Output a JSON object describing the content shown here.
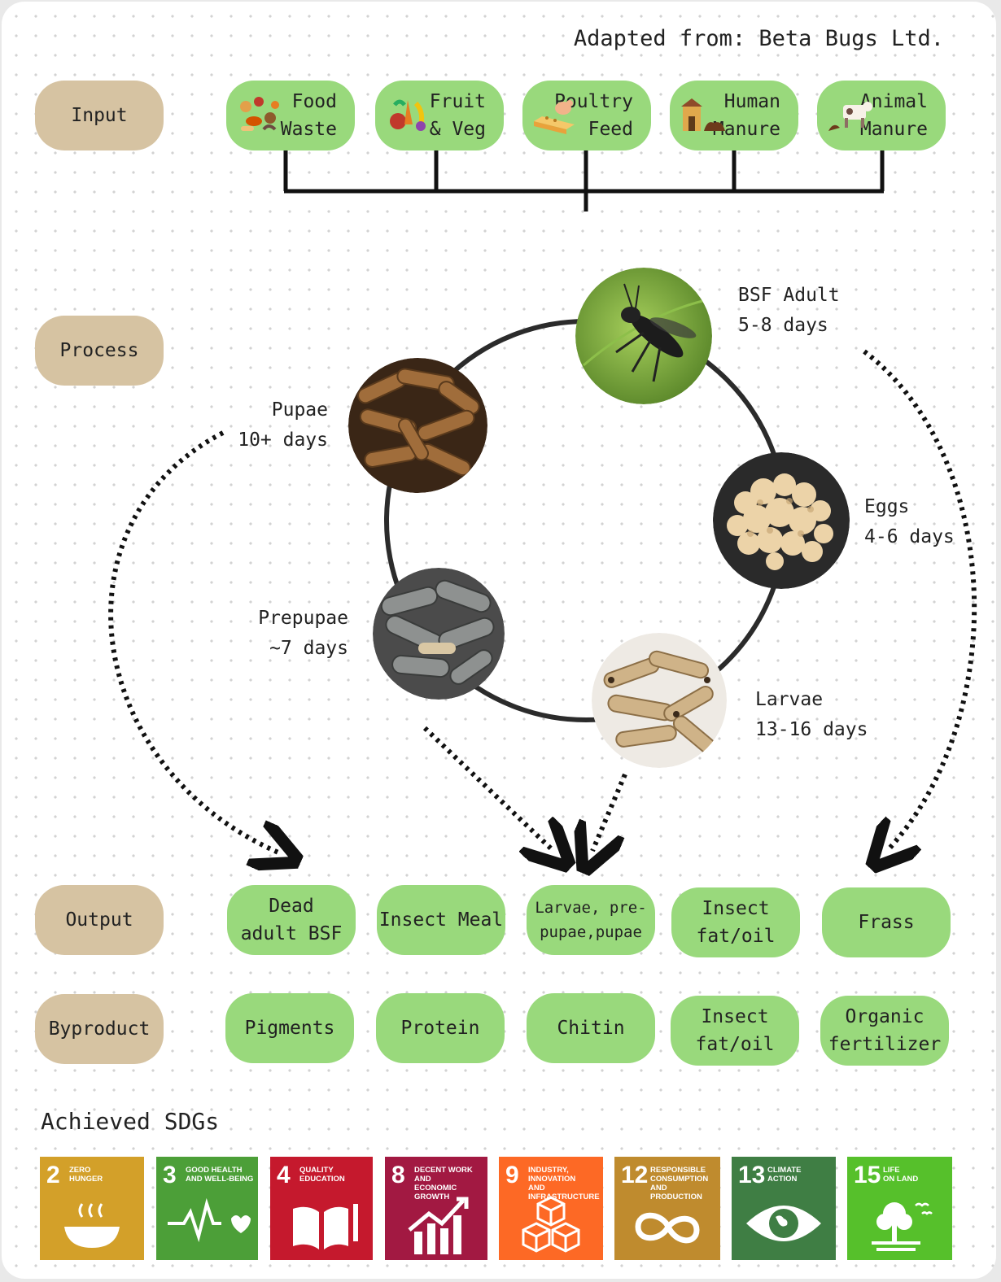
{
  "credit": "Adapted from: Beta Bugs Ltd.",
  "stages": {
    "input": "Input",
    "process": "Process",
    "output": "Output",
    "byproduct": "Byproduct"
  },
  "inputs": [
    {
      "label": "Food\nWaste",
      "icon": "food-waste-icon"
    },
    {
      "label": "Fruit\n& Veg",
      "icon": "fruit-veg-icon"
    },
    {
      "label": "Poultry\nFeed",
      "icon": "poultry-feed-icon"
    },
    {
      "label": "Human\nManure",
      "icon": "human-manure-icon"
    },
    {
      "label": "Animal\nManure",
      "icon": "animal-manure-icon"
    }
  ],
  "lifecycle": [
    {
      "name": "BSF Adult",
      "duration": "5-8 days"
    },
    {
      "name": "Eggs",
      "duration": "4-6 days"
    },
    {
      "name": "Larvae",
      "duration": "13-16 days"
    },
    {
      "name": "Prepupae",
      "duration": "~7 days"
    },
    {
      "name": "Pupae",
      "duration": "10+ days"
    }
  ],
  "outputs": [
    "Dead\nadult BSF",
    "Insect Meal",
    "Larvae, pre-\npupae,pupae",
    "Insect\nfat/oil",
    "Frass"
  ],
  "byproducts": [
    "Pigments",
    "Protein",
    "Chitin",
    "Insect\nfat/oil",
    "Organic\nfertilizer"
  ],
  "sdg_heading": "Achieved SDGs",
  "sdgs": [
    {
      "number": "2",
      "title": "Zero\nhunger",
      "color": "#d3a029",
      "icon": "bowl-icon"
    },
    {
      "number": "3",
      "title": "Good health\nand well-being",
      "color": "#4c9f38",
      "icon": "heartbeat-icon"
    },
    {
      "number": "4",
      "title": "Quality\neducation",
      "color": "#c5192d",
      "icon": "book-icon"
    },
    {
      "number": "8",
      "title": "Decent work and\neconomic growth",
      "color": "#a21942",
      "icon": "growth-chart-icon"
    },
    {
      "number": "9",
      "title": "Industry, innovation\nand infrastructure",
      "color": "#fd6925",
      "icon": "cubes-icon"
    },
    {
      "number": "12",
      "title": "Responsible\nconsumption\nand production",
      "color": "#bf8b2e",
      "icon": "infinity-icon"
    },
    {
      "number": "13",
      "title": "Climate\naction",
      "color": "#3f7e44",
      "icon": "eye-globe-icon"
    },
    {
      "number": "15",
      "title": "Life\non land",
      "color": "#56c02b",
      "icon": "tree-icon"
    }
  ],
  "colors": {
    "stage_pill": "#d6c3a2",
    "green_pill": "#99d97c",
    "connector": "#111111"
  }
}
